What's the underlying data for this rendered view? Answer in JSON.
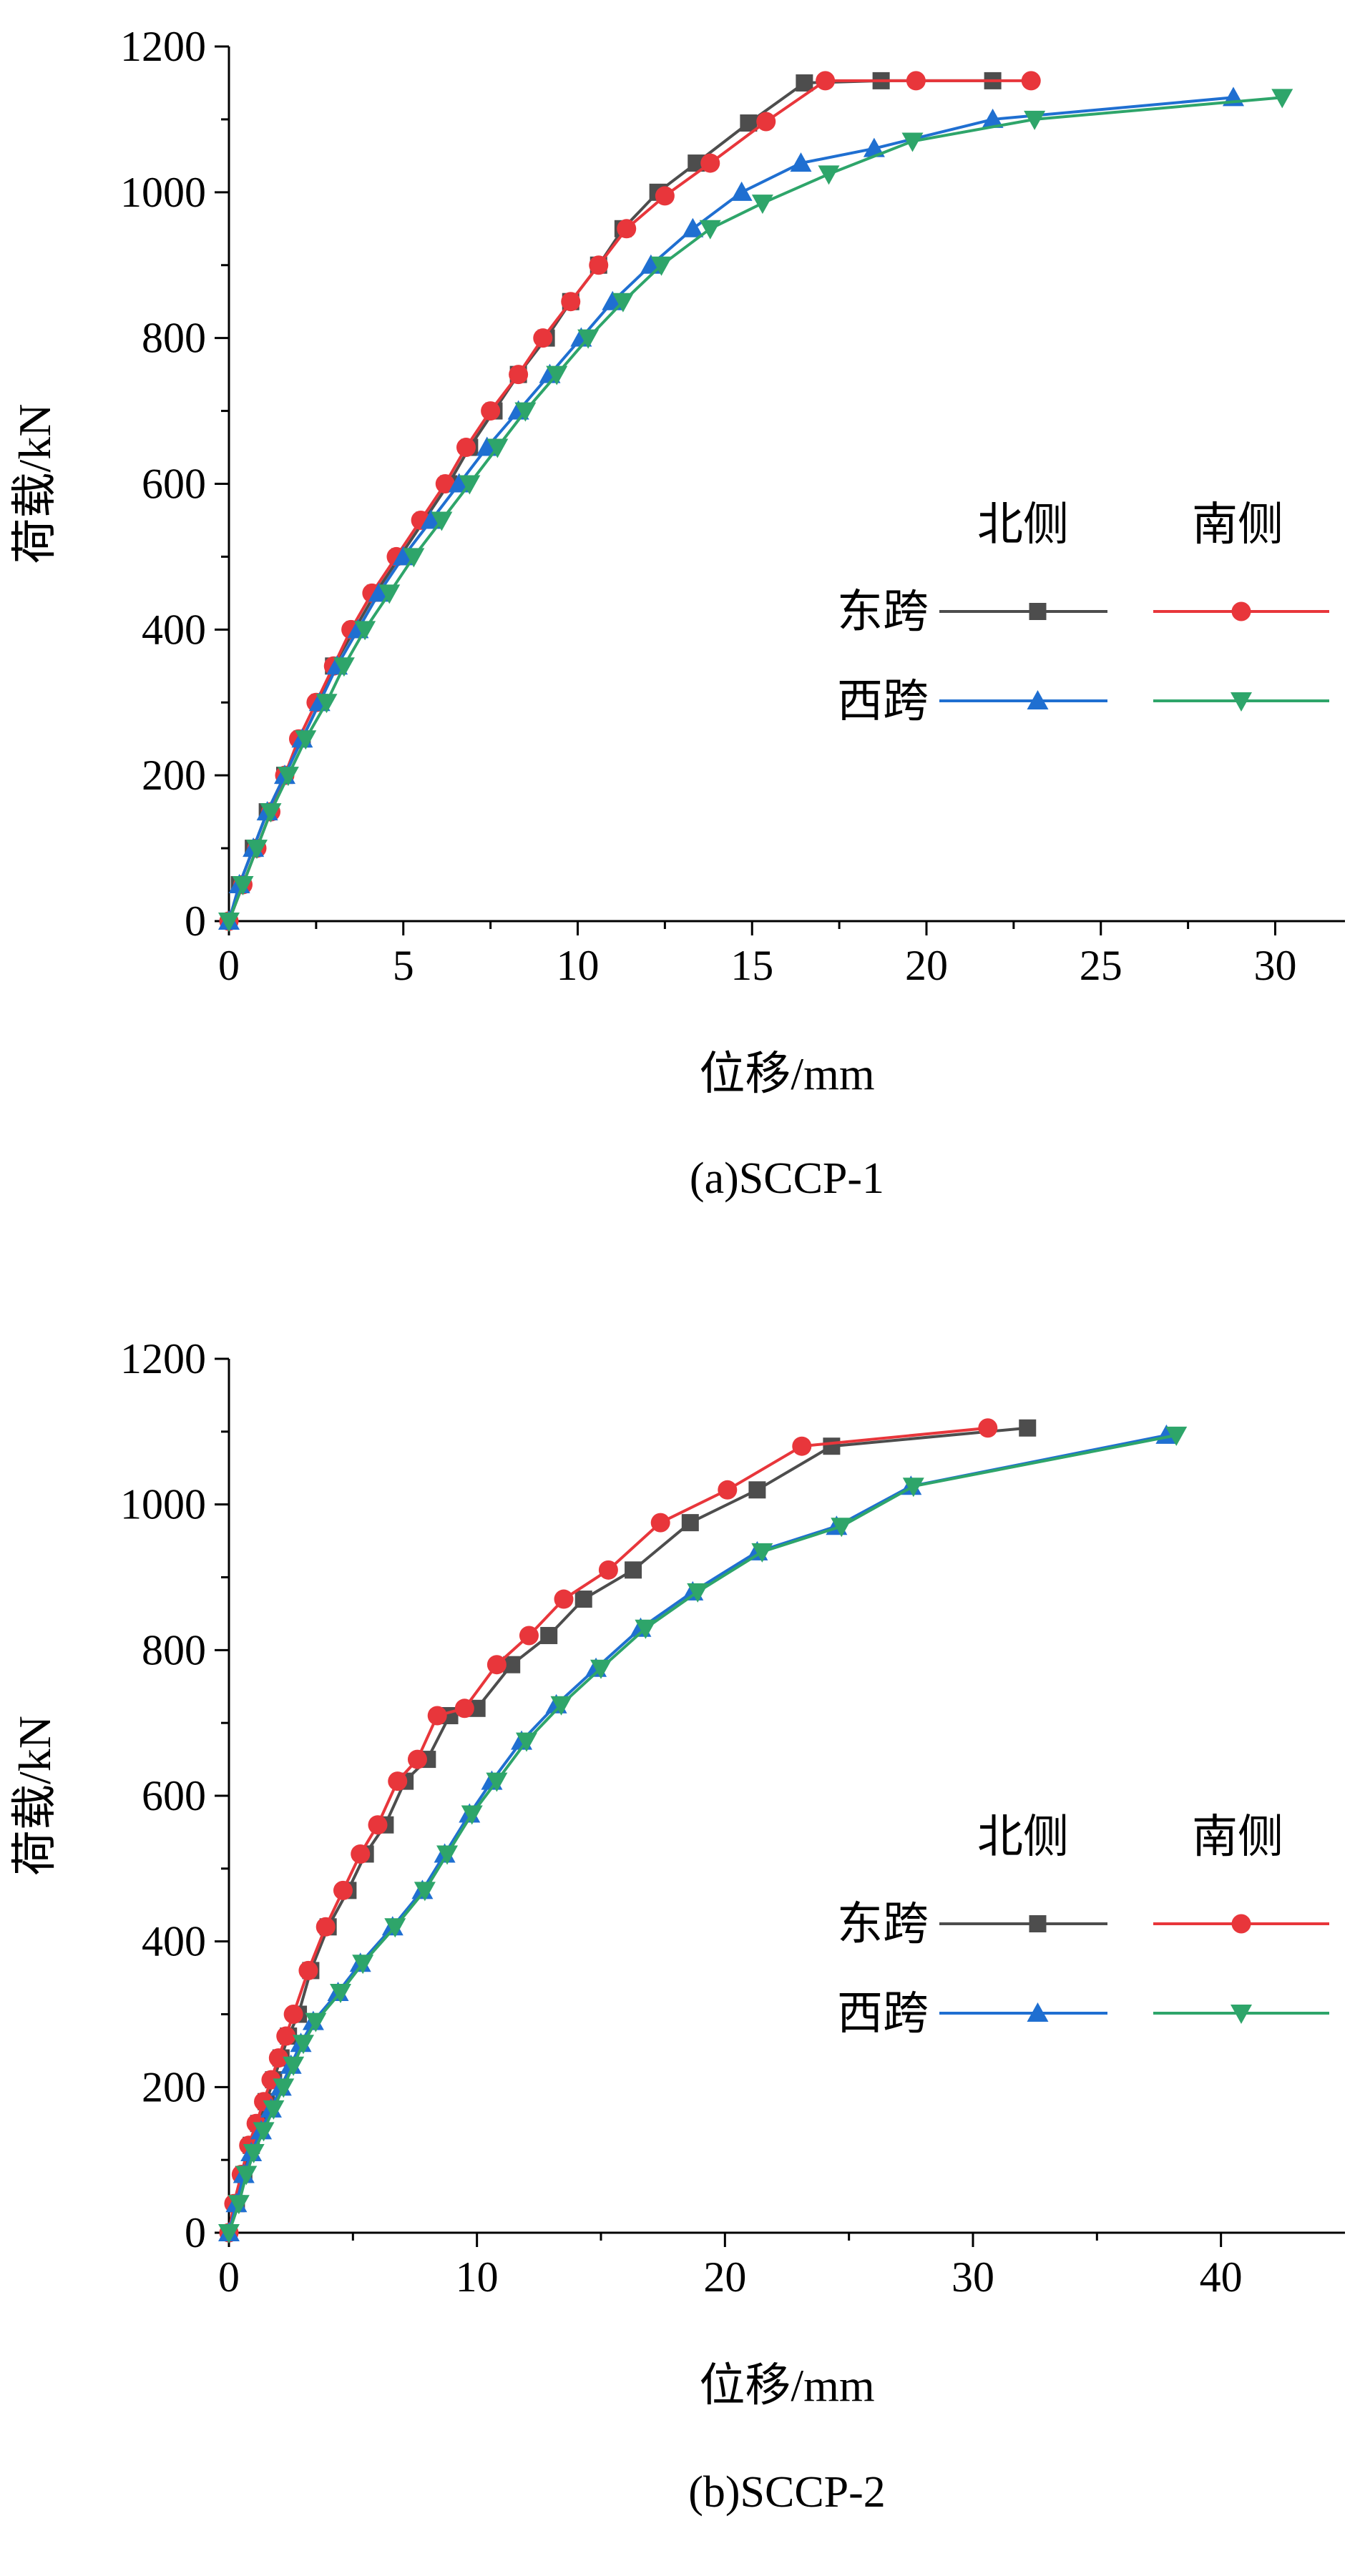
{
  "legend": {
    "col_north": "北侧",
    "col_south": "南侧",
    "row_east": "东跨",
    "row_west": "西跨"
  },
  "colors": {
    "east_north": "#4d4d4d",
    "east_south": "#e8363b",
    "west_north": "#1f6fd1",
    "west_south": "#2ea56a"
  },
  "chart_data": [
    {
      "type": "line",
      "caption": "(a)SCCP-1",
      "xlabel": "位移/mm",
      "ylabel": "荷载/kN",
      "xlim": [
        0,
        32
      ],
      "ylim": [
        0,
        1200
      ],
      "xticks": [
        "0",
        "5",
        "10",
        "15",
        "20",
        "25",
        "30"
      ],
      "yticks": [
        "0",
        "200",
        "400",
        "600",
        "800",
        "1000",
        "1200"
      ],
      "grid": false,
      "legend_position": "right-middle",
      "series": [
        {
          "span": "东跨",
          "side": "北侧",
          "marker": "square",
          "x": [
            0,
            0.3,
            0.7,
            1.1,
            1.6,
            2.1,
            2.6,
            3.0,
            3.6,
            4.2,
            4.9,
            5.6,
            6.3,
            6.9,
            7.6,
            8.3,
            9.1,
            9.8,
            10.6,
            11.3,
            12.3,
            13.4,
            14.9,
            16.5,
            18.7,
            21.9
          ],
          "y": [
            0,
            50,
            100,
            150,
            200,
            250,
            300,
            350,
            400,
            450,
            500,
            550,
            600,
            650,
            700,
            750,
            800,
            850,
            900,
            950,
            1000,
            1040,
            1095,
            1150,
            1153,
            1153
          ]
        },
        {
          "span": "东跨",
          "side": "南侧",
          "marker": "circle",
          "x": [
            0,
            0.4,
            0.8,
            1.2,
            1.6,
            2.0,
            2.5,
            3.0,
            3.5,
            4.1,
            4.8,
            5.5,
            6.2,
            6.8,
            7.5,
            8.3,
            9.0,
            9.8,
            10.6,
            11.4,
            12.5,
            13.8,
            15.4,
            17.1,
            19.7,
            23.0
          ],
          "y": [
            0,
            50,
            100,
            150,
            200,
            250,
            300,
            350,
            400,
            450,
            500,
            550,
            600,
            650,
            700,
            750,
            800,
            850,
            900,
            950,
            995,
            1040,
            1097,
            1153,
            1153,
            1153
          ]
        },
        {
          "span": "西跨",
          "side": "北侧",
          "marker": "triangle-up",
          "x": [
            0,
            0.3,
            0.7,
            1.1,
            1.6,
            2.1,
            2.6,
            3.1,
            3.7,
            4.3,
            5.0,
            5.8,
            6.6,
            7.4,
            8.3,
            9.2,
            10.1,
            11.0,
            12.1,
            13.3,
            14.7,
            16.4,
            18.5,
            21.9,
            28.8
          ],
          "y": [
            0,
            50,
            100,
            150,
            200,
            250,
            300,
            350,
            400,
            450,
            500,
            550,
            600,
            650,
            700,
            750,
            800,
            850,
            900,
            950,
            1000,
            1040,
            1060,
            1100,
            1130
          ]
        },
        {
          "span": "西跨",
          "side": "南侧",
          "marker": "triangle-down",
          "x": [
            0,
            0.4,
            0.8,
            1.2,
            1.7,
            2.2,
            2.8,
            3.3,
            3.9,
            4.6,
            5.3,
            6.1,
            6.9,
            7.7,
            8.5,
            9.4,
            10.3,
            11.3,
            12.4,
            13.8,
            15.3,
            17.2,
            19.6,
            23.1,
            30.2
          ],
          "y": [
            0,
            50,
            100,
            150,
            200,
            250,
            300,
            350,
            400,
            450,
            500,
            550,
            600,
            650,
            700,
            750,
            800,
            850,
            900,
            950,
            985,
            1025,
            1070,
            1100,
            1130
          ]
        }
      ]
    },
    {
      "type": "line",
      "caption": "(b)SCCP-2",
      "xlabel": "位移/mm",
      "ylabel": "荷载/kN",
      "xlim": [
        0,
        45
      ],
      "ylim": [
        0,
        1200
      ],
      "xticks": [
        "0",
        "10",
        "20",
        "30",
        "40"
      ],
      "yticks": [
        "0",
        "200",
        "400",
        "600",
        "800",
        "1000",
        "1200"
      ],
      "grid": false,
      "legend_position": "right-middle",
      "series": [
        {
          "span": "东跨",
          "side": "北侧",
          "marker": "square",
          "x": [
            0,
            0.3,
            0.6,
            0.9,
            1.2,
            1.5,
            1.8,
            2.1,
            2.4,
            2.8,
            3.3,
            4.0,
            4.8,
            5.5,
            6.3,
            7.1,
            8.0,
            8.9,
            10.0,
            11.4,
            12.9,
            14.3,
            16.3,
            18.6,
            21.3,
            24.3,
            32.2
          ],
          "y": [
            0,
            40,
            80,
            120,
            150,
            180,
            210,
            240,
            270,
            300,
            360,
            420,
            470,
            520,
            560,
            620,
            650,
            710,
            720,
            780,
            820,
            870,
            910,
            975,
            1020,
            1080,
            1105
          ]
        },
        {
          "span": "东跨",
          "side": "南侧",
          "marker": "circle",
          "x": [
            0,
            0.2,
            0.5,
            0.8,
            1.1,
            1.4,
            1.7,
            2.0,
            2.3,
            2.6,
            3.2,
            3.9,
            4.6,
            5.3,
            6.0,
            6.8,
            7.6,
            8.4,
            9.5,
            10.8,
            12.1,
            13.5,
            15.3,
            17.4,
            20.1,
            23.1,
            30.6
          ],
          "y": [
            0,
            40,
            80,
            120,
            150,
            180,
            210,
            240,
            270,
            300,
            360,
            420,
            470,
            520,
            560,
            620,
            650,
            710,
            720,
            780,
            820,
            870,
            910,
            975,
            1020,
            1080,
            1105
          ]
        },
        {
          "span": "西跨",
          "side": "北侧",
          "marker": "triangle-up",
          "x": [
            0,
            0.3,
            0.6,
            0.9,
            1.3,
            1.7,
            2.1,
            2.5,
            2.9,
            3.4,
            4.4,
            5.3,
            6.6,
            7.8,
            8.7,
            9.7,
            10.6,
            11.8,
            13.2,
            14.8,
            16.6,
            18.7,
            21.3,
            24.5,
            27.5,
            37.8
          ],
          "y": [
            0,
            40,
            80,
            110,
            140,
            170,
            200,
            230,
            260,
            290,
            330,
            370,
            420,
            470,
            520,
            575,
            620,
            675,
            725,
            775,
            830,
            880,
            935,
            970,
            1025,
            1095
          ]
        },
        {
          "span": "西跨",
          "side": "南侧",
          "marker": "triangle-down",
          "x": [
            0,
            0.4,
            0.7,
            1.0,
            1.4,
            1.8,
            2.2,
            2.6,
            3.0,
            3.5,
            4.5,
            5.4,
            6.7,
            7.9,
            8.8,
            9.8,
            10.8,
            12.0,
            13.4,
            15.0,
            16.8,
            18.9,
            21.5,
            24.7,
            27.6,
            38.2
          ],
          "y": [
            0,
            40,
            80,
            110,
            140,
            170,
            200,
            230,
            260,
            290,
            330,
            370,
            420,
            470,
            520,
            575,
            620,
            675,
            725,
            775,
            830,
            880,
            935,
            970,
            1025,
            1095
          ]
        }
      ]
    }
  ]
}
